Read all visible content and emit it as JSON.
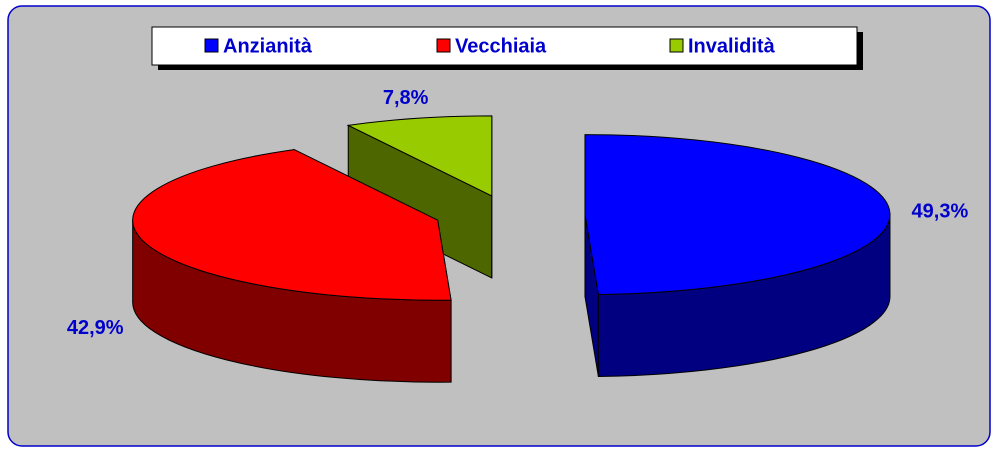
{
  "chart_data": {
    "type": "pie3d",
    "categories": [
      "Anzianità",
      "Vecchiaia",
      "Invalidità"
    ],
    "values": [
      49.3,
      42.9,
      7.8
    ],
    "value_labels": [
      "49,3%",
      "42,9%",
      "7,8%"
    ],
    "colors": [
      "#0000ff",
      "#ff0000",
      "#99cc00"
    ],
    "legend": "top"
  }
}
